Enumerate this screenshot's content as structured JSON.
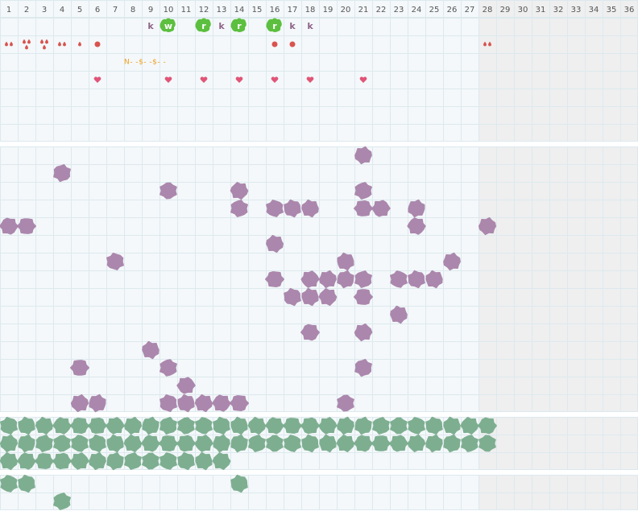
{
  "columns": [
    1,
    2,
    3,
    4,
    5,
    6,
    7,
    8,
    9,
    10,
    11,
    12,
    13,
    14,
    15,
    16,
    17,
    18,
    19,
    20,
    21,
    22,
    23,
    24,
    25,
    26,
    27,
    28,
    29,
    30,
    31,
    32,
    33,
    34,
    35,
    36
  ],
  "shaded_from": 28,
  "tracker": {
    "rows": [
      [
        {
          "col": 9,
          "text": "k",
          "style": "letter"
        },
        {
          "col": 10,
          "text": "w",
          "style": "badge"
        },
        {
          "col": 12,
          "text": "r",
          "style": "badge"
        },
        {
          "col": 13,
          "text": "k",
          "style": "letter"
        },
        {
          "col": 14,
          "text": "r",
          "style": "badge"
        },
        {
          "col": 16,
          "text": "r",
          "style": "badge"
        },
        {
          "col": 17,
          "text": "k",
          "style": "letter"
        },
        {
          "col": 18,
          "text": "k",
          "style": "letter"
        }
      ],
      [
        {
          "col": 1,
          "style": "drops",
          "count": 2
        },
        {
          "col": 2,
          "style": "drops",
          "count": 3
        },
        {
          "col": 3,
          "style": "drops",
          "count": 3
        },
        {
          "col": 4,
          "style": "drops",
          "count": 2
        },
        {
          "col": 5,
          "style": "drops",
          "count": 1
        },
        {
          "col": 6,
          "style": "dot"
        },
        {
          "col": 16,
          "style": "dot"
        },
        {
          "col": 17,
          "style": "dot"
        },
        {
          "col": 28,
          "style": "drops",
          "count": 2
        }
      ],
      [
        {
          "col": 8,
          "text": "N- -$- -$- -",
          "style": "note"
        }
      ],
      [
        {
          "col": 6,
          "style": "heart"
        },
        {
          "col": 10,
          "style": "heart"
        },
        {
          "col": 12,
          "style": "heart"
        },
        {
          "col": 14,
          "style": "heart"
        },
        {
          "col": 16,
          "style": "heart"
        },
        {
          "col": 18,
          "style": "heart"
        },
        {
          "col": 21,
          "style": "heart"
        }
      ],
      [],
      [],
      []
    ]
  },
  "blob_sections": [
    {
      "color": "#a882a9",
      "rows": [
        [
          21
        ],
        [
          4
        ],
        [
          10,
          14,
          21
        ],
        [
          14,
          16,
          17,
          18,
          21,
          22,
          24
        ],
        [
          1,
          2,
          24,
          28
        ],
        [
          16
        ],
        [
          7,
          20,
          26
        ],
        [
          16,
          18,
          19,
          20,
          21,
          23,
          24,
          25
        ],
        [
          17,
          18,
          19,
          21
        ],
        [
          23
        ],
        [
          18,
          21
        ],
        [
          9
        ],
        [
          5,
          10,
          21
        ],
        [
          11
        ],
        [
          5,
          6,
          10,
          11,
          12,
          13,
          14,
          20
        ]
      ]
    },
    {
      "color": "#78ab8b",
      "rows": [
        [
          1,
          2,
          3,
          4,
          5,
          6,
          7,
          8,
          9,
          10,
          11,
          12,
          13,
          14,
          15,
          16,
          17,
          18,
          19,
          20,
          21,
          22,
          23,
          24,
          25,
          26,
          27,
          28
        ],
        [
          1,
          2,
          3,
          4,
          5,
          6,
          7,
          8,
          9,
          10,
          11,
          12,
          13,
          14,
          15,
          16,
          17,
          18,
          19,
          20,
          21,
          22,
          23,
          24,
          25,
          26,
          27,
          28
        ],
        [
          1,
          2,
          3,
          4,
          5,
          6,
          7,
          8,
          9,
          10,
          11,
          12,
          13
        ]
      ]
    },
    {
      "color": "#78ab8b",
      "rows": [
        [
          1,
          2,
          14
        ],
        [
          4
        ]
      ]
    }
  ]
}
